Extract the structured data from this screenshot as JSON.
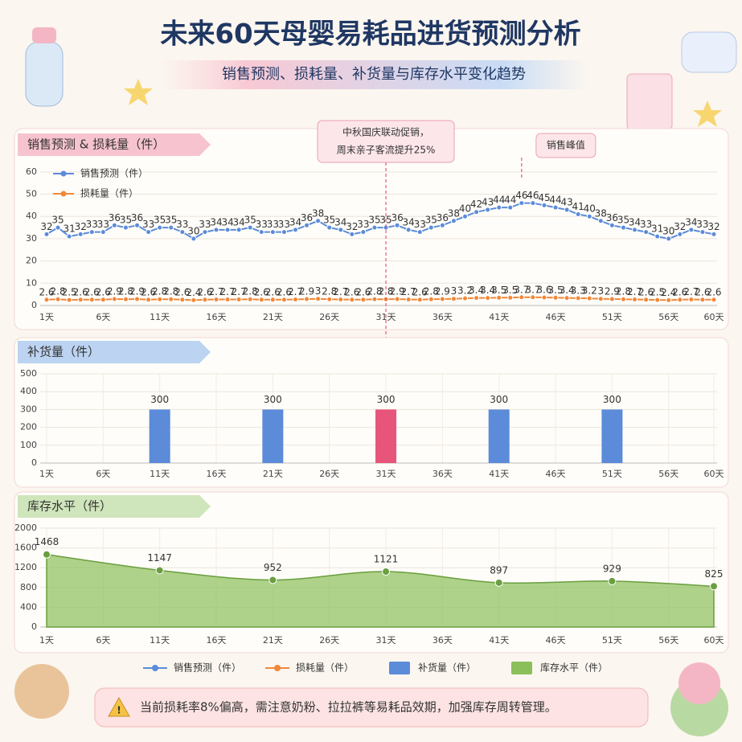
{
  "title": "未来60天母婴易耗品进货预测分析",
  "subtitle": "销售预测、损耗量、补货量与库存水平变化趋势",
  "note": "当前损耗率8%偏高，需注意奶粉、拉拉裤等易耗品效期，加强库存周转管理。",
  "chart_data": [
    {
      "type": "line",
      "title": "销售预测 & 损耗量（件）",
      "legend": "upper left",
      "grid": true,
      "categories": [
        "1天",
        null,
        null,
        null,
        null,
        "6天",
        null,
        null,
        null,
        null,
        "11天",
        null,
        null,
        null,
        null,
        "16天",
        null,
        null,
        null,
        null,
        "21天",
        null,
        null,
        null,
        null,
        "26天",
        null,
        null,
        null,
        null,
        "31天",
        null,
        null,
        null,
        null,
        "36天",
        null,
        null,
        null,
        null,
        "41天",
        null,
        null,
        null,
        null,
        "46天",
        null,
        null,
        null,
        null,
        "51天",
        null,
        null,
        null,
        null,
        "56天",
        null,
        null,
        null,
        "60天"
      ],
      "ylim": [
        0,
        65
      ],
      "yticks": [
        0,
        10,
        20,
        30,
        40,
        50,
        60
      ],
      "series": [
        {
          "name": "销售预测（件）",
          "color": "#5b8bd9",
          "values": [
            32,
            35,
            31,
            32,
            33,
            33,
            36,
            35,
            36,
            33,
            35,
            35,
            33,
            30,
            33,
            34,
            34,
            34,
            35,
            33,
            33,
            33,
            34,
            36,
            38,
            35,
            34,
            32,
            33,
            35,
            35,
            36,
            34,
            33,
            35,
            36,
            38,
            40,
            42,
            43,
            44,
            44,
            46,
            46,
            45,
            44,
            43,
            41,
            40,
            38,
            36,
            35,
            34,
            33,
            31,
            30,
            32,
            34,
            33,
            32
          ]
        },
        {
          "name": "损耗量（件）",
          "color": "#f0883a",
          "values": [
            2.6,
            2.8,
            2.5,
            2.6,
            2.6,
            2.6,
            2.9,
            2.8,
            2.9,
            2.6,
            2.8,
            2.8,
            2.6,
            2.4,
            2.6,
            2.7,
            2.7,
            2.7,
            2.8,
            2.6,
            2.6,
            2.6,
            2.7,
            2.9,
            3.0,
            2.8,
            2.7,
            2.6,
            2.6,
            2.8,
            2.8,
            2.9,
            2.7,
            2.6,
            2.8,
            2.9,
            3.0,
            3.2,
            3.4,
            3.4,
            3.5,
            3.5,
            3.7,
            3.7,
            3.6,
            3.5,
            3.4,
            3.3,
            3.2,
            3.0,
            2.9,
            2.8,
            2.7,
            2.6,
            2.5,
            2.4,
            2.6,
            2.7,
            2.6,
            2.6
          ]
        }
      ],
      "annotations": [
        {
          "lines": [
            "中秋国庆联动促销，",
            "周末亲子客流提升25%"
          ],
          "x": 31
        },
        {
          "lines": [
            "销售峰值"
          ],
          "x": 43
        }
      ]
    },
    {
      "type": "bar",
      "title": "补货量（件）",
      "grid": true,
      "xlim": [
        1,
        60
      ],
      "xticks": [
        {
          "value": 1,
          "label": "1天"
        },
        {
          "value": 6,
          "label": "6天"
        },
        {
          "value": 11,
          "label": "11天"
        },
        {
          "value": 16,
          "label": "16天"
        },
        {
          "value": 21,
          "label": "21天"
        },
        {
          "value": 26,
          "label": "26天"
        },
        {
          "value": 31,
          "label": "31天"
        },
        {
          "value": 36,
          "label": "36天"
        },
        {
          "value": 41,
          "label": "41天"
        },
        {
          "value": 46,
          "label": "46天"
        },
        {
          "value": 51,
          "label": "51天"
        },
        {
          "value": 56,
          "label": "56天"
        },
        {
          "value": 60,
          "label": "60天"
        }
      ],
      "ylim": [
        0,
        500
      ],
      "yticks": [
        0,
        100,
        200,
        300,
        400,
        500
      ],
      "series": [
        {
          "name": "补货量（件）",
          "color": "#5b8bd9",
          "colors": [
            "#5b8bd9",
            "#5b8bd9",
            "#e8557a",
            "#5b8bd9",
            "#5b8bd9"
          ],
          "x": [
            11,
            21,
            31,
            41,
            51
          ],
          "values": [
            300,
            300,
            300,
            300,
            300
          ]
        }
      ]
    },
    {
      "type": "area",
      "title": "库存水平（件）",
      "grid": true,
      "xlim": [
        1,
        60
      ],
      "xticks": [
        {
          "value": 1,
          "label": "1天"
        },
        {
          "value": 6,
          "label": "6天"
        },
        {
          "value": 11,
          "label": "11天"
        },
        {
          "value": 16,
          "label": "16天"
        },
        {
          "value": 21,
          "label": "21天"
        },
        {
          "value": 26,
          "label": "26天"
        },
        {
          "value": 31,
          "label": "31天"
        },
        {
          "value": 36,
          "label": "36天"
        },
        {
          "value": 41,
          "label": "41天"
        },
        {
          "value": 46,
          "label": "46天"
        },
        {
          "value": 51,
          "label": "51天"
        },
        {
          "value": 56,
          "label": "56天"
        },
        {
          "value": 60,
          "label": "60天"
        }
      ],
      "ylim": [
        0,
        2000
      ],
      "yticks": [
        0,
        400,
        800,
        1200,
        1600,
        2000
      ],
      "series": [
        {
          "name": "库存水平（件）",
          "color": "#8bbf5a",
          "x": [
            1,
            11,
            21,
            31,
            41,
            51,
            60
          ],
          "values": [
            1468,
            1147,
            952,
            1121,
            897,
            929,
            825
          ]
        }
      ]
    }
  ]
}
